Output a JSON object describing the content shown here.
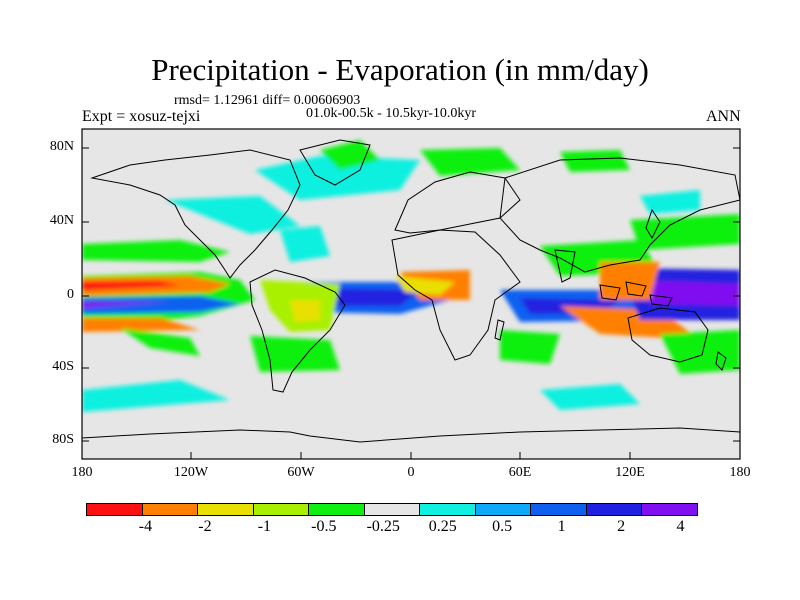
{
  "title": "Precipitation - Evaporation (in mm/day)",
  "stats": "rmsd= 1.12961 diff= 0.00606903",
  "period": "01.0k-00.5k - 10.5kyr-10.0kyr",
  "experiment": "Expt = xosuz-tejxi",
  "season": "ANN",
  "lat_labels": [
    "80N",
    "40N",
    "0",
    "40S",
    "80S"
  ],
  "lon_labels": [
    "180",
    "120W",
    "60W",
    "0",
    "60E",
    "120E",
    "180"
  ],
  "colorbar": {
    "labels": [
      "-4",
      "-2",
      "-1",
      "-0.5",
      "-0.25",
      "0.25",
      "0.5",
      "1",
      "2",
      "4"
    ],
    "colors": [
      "#ff1010",
      "#ff8000",
      "#e8e000",
      "#a8f000",
      "#10f010",
      "#e6e6e6",
      "#10f0e0",
      "#10a8f8",
      "#1060f0",
      "#2020e0",
      "#8010f0"
    ]
  }
}
